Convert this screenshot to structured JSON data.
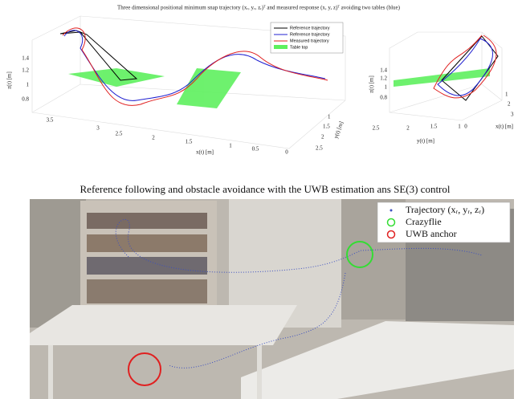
{
  "top_figure": {
    "title": "Three dimensional positional minimum snap trajectory (xᵣ, yᵣ, zᵣ)ᵀ and measured response (x, y, z)ᵀ avoiding two tables (blue)",
    "left_plot": {
      "legend": [
        "Reference trajectory",
        "Reference trajectory",
        "Measured trajectory",
        "Table top"
      ],
      "z_label": "z(t) [m]",
      "x_label": "x(t) [m]",
      "y_label": "y(t) [m]",
      "z_ticks": [
        "1.4",
        "1.2",
        "1",
        "0.8"
      ],
      "x_ticks": [
        "3.5",
        "3",
        "2.5",
        "2",
        "1.5",
        "1",
        "0.5",
        "0"
      ],
      "y_ticks": [
        "1",
        "1.5",
        "2",
        "2.5"
      ]
    },
    "right_plot": {
      "z_label": "z(t) [m]",
      "x_label": "x(t) [m]",
      "y_label": "y(t) [m]",
      "z_ticks": [
        "1.4",
        "1.2",
        "1",
        "0.8"
      ],
      "y_ticks": [
        "2.5",
        "2",
        "1.5",
        "1",
        "0"
      ],
      "x_ticks": [
        "1",
        "2",
        "3"
      ]
    }
  },
  "bottom_figure": {
    "title": "Reference following and obstacle avoidance with the UWB estimation ans SE(3) control",
    "legend": [
      "Trajectory (xᵣ, yᵣ, zᵣ)",
      "Crazyflie",
      "UWB anchor"
    ]
  }
}
